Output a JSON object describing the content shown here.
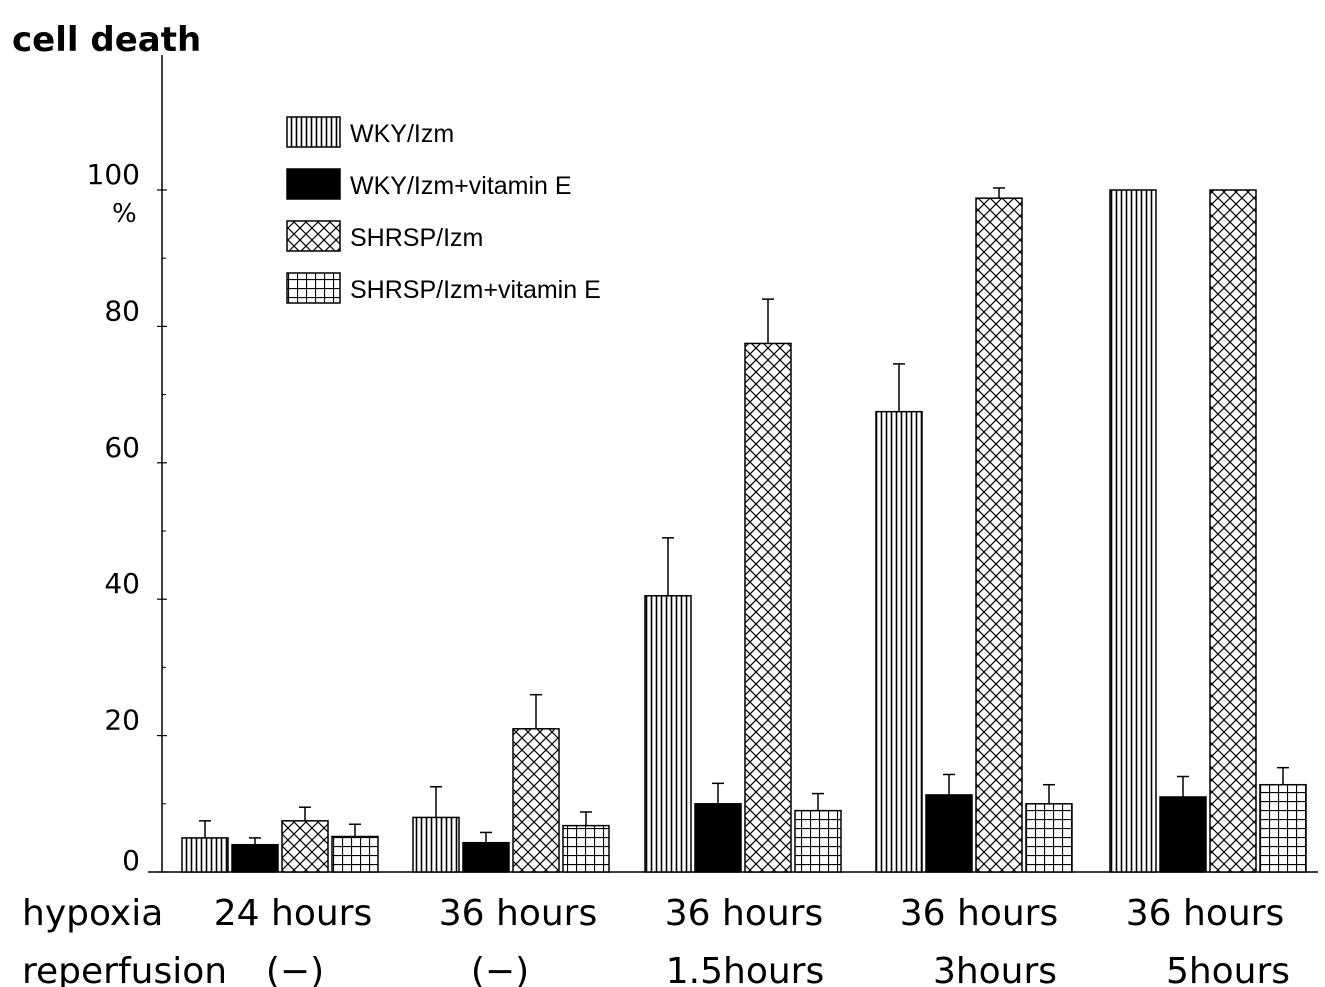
{
  "chart_data": {
    "type": "bar",
    "title": "",
    "ylabel": "cell death",
    "yunit": "%",
    "ylim": [
      0,
      100
    ],
    "yticks": [
      0,
      20,
      40,
      60,
      80,
      100
    ],
    "grid": false,
    "legend_position": "top-left",
    "row_labels": [
      "hypoxia",
      "reperfusion"
    ],
    "categories": [
      {
        "hypoxia": "24 hours",
        "reperfusion": "(−)"
      },
      {
        "hypoxia": "36 hours",
        "reperfusion": "(−)"
      },
      {
        "hypoxia": "36 hours",
        "reperfusion": "1.5hours"
      },
      {
        "hypoxia": "36 hours",
        "reperfusion": "3hours"
      },
      {
        "hypoxia": "36 hours",
        "reperfusion": "5hours"
      }
    ],
    "series": [
      {
        "name": "WKY/Izm",
        "pattern": "vertical-lines",
        "values": [
          5,
          8,
          40.5,
          67.5,
          100
        ],
        "errors": [
          2.5,
          4.5,
          8.5,
          7,
          0
        ]
      },
      {
        "name": "WKY/Izm+vitamin E",
        "pattern": "solid-black",
        "values": [
          4,
          4.3,
          10,
          11.3,
          11
        ],
        "errors": [
          1,
          1.5,
          3,
          3,
          3
        ]
      },
      {
        "name": "SHRSP/Izm",
        "pattern": "cross-hatch",
        "values": [
          7.5,
          21,
          77.5,
          98.8,
          100
        ],
        "errors": [
          2,
          5,
          6.5,
          1.5,
          0
        ]
      },
      {
        "name": "SHRSP/Izm+vitamin E",
        "pattern": "grid",
        "values": [
          5.2,
          6.8,
          9,
          10,
          12.8
        ],
        "errors": [
          1.8,
          2,
          2.5,
          2.8,
          2.5
        ]
      }
    ]
  }
}
